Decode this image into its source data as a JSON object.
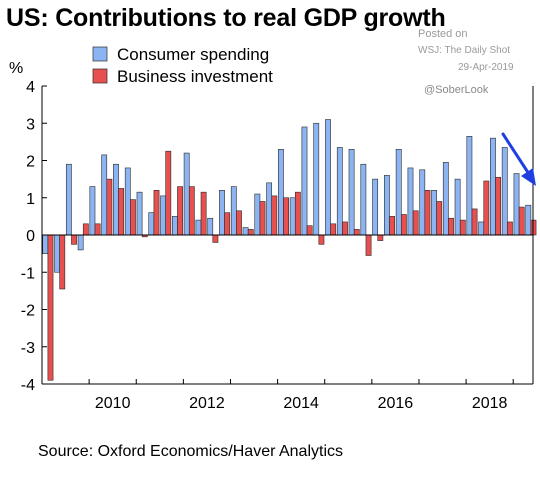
{
  "chart_data": {
    "type": "bar",
    "title": "US: Contributions to real GDP growth",
    "ylabel": "%",
    "ylim": [
      -4,
      4
    ],
    "yticks": [
      4,
      3,
      2,
      1,
      0,
      -1,
      -2,
      -3,
      -4
    ],
    "xlim": [
      2009,
      2019.42
    ],
    "xticks": [
      "2010",
      "2012",
      "2014",
      "2016",
      "2018"
    ],
    "xtick_values": [
      2010,
      2012,
      2014,
      2016,
      2018
    ],
    "grid": false,
    "legend": "top-left",
    "x_start_quarter": "2009 Q1",
    "series": [
      {
        "name": "Consumer spending",
        "color": "#8db4f2",
        "values": [
          -0.5,
          -1.0,
          1.9,
          -0.4,
          1.3,
          2.15,
          1.9,
          1.8,
          1.15,
          0.6,
          1.05,
          0.5,
          2.2,
          0.4,
          0.45,
          1.2,
          1.3,
          0.2,
          1.1,
          1.4,
          2.3,
          1.0,
          2.9,
          3.0,
          3.1,
          2.35,
          2.3,
          1.9,
          1.5,
          1.6,
          2.3,
          1.8,
          1.75,
          1.2,
          1.95,
          1.5,
          2.65,
          0.35,
          2.6,
          2.35,
          1.65,
          0.8
        ]
      },
      {
        "name": "Business investment",
        "color": "#e85050",
        "values": [
          -3.9,
          -1.45,
          -0.25,
          0.3,
          0.3,
          1.5,
          1.25,
          0.95,
          -0.05,
          1.2,
          2.25,
          1.3,
          1.3,
          1.15,
          -0.2,
          0.6,
          0.65,
          0.15,
          0.9,
          1.05,
          1.0,
          1.15,
          0.25,
          -0.25,
          0.3,
          0.35,
          0.15,
          -0.55,
          -0.15,
          0.5,
          0.55,
          0.65,
          1.2,
          0.9,
          0.45,
          0.4,
          0.7,
          1.45,
          1.55,
          0.35,
          0.75,
          0.4
        ]
      }
    ]
  },
  "attribution": {
    "posted": "Posted on",
    "outlet": "WSJ: The Daily Shot",
    "date": "29-Apr-2019",
    "handle": "@SoberLook"
  },
  "source": "Source: Oxford Economics/Haver Analytics",
  "colors": {
    "arrow": "#1f3fe0",
    "axis": "#000000"
  }
}
